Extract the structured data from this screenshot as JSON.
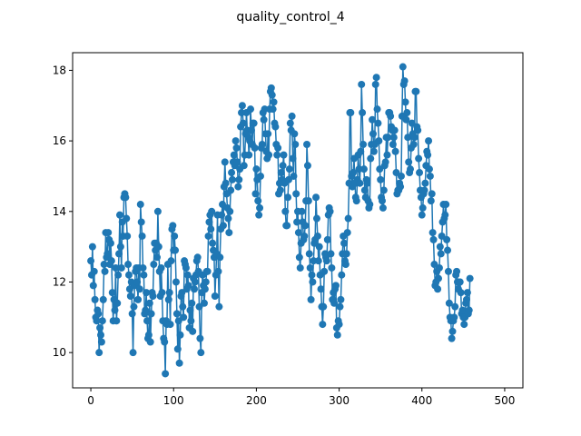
{
  "chart_data": {
    "type": "line",
    "title": "quality_control_4",
    "xlabel": "",
    "ylabel": "",
    "xlim": [
      -22,
      522
    ],
    "ylim": [
      9.0,
      18.5
    ],
    "x_ticks": [
      0,
      100,
      200,
      300,
      400,
      500
    ],
    "y_ticks": [
      10,
      12,
      14,
      16,
      18
    ],
    "grid": false,
    "legend": "none",
    "marker": "circle",
    "color": "#1f77b4",
    "series": [
      {
        "x_start": 0,
        "x_step": 1,
        "values": [
          12.6,
          12.2,
          13.0,
          11.9,
          12.3,
          11.5,
          11.0,
          10.9,
          11.2,
          11.1,
          10.0,
          10.7,
          10.5,
          10.3,
          10.9,
          11.5,
          12.5,
          12.3,
          13.4,
          12.7,
          12.8,
          13.4,
          13.2,
          12.5,
          13.1,
          12.6,
          11.7,
          10.9,
          11.5,
          11.2,
          12.4,
          10.9,
          11.4,
          12.2,
          12.8,
          13.9,
          13.0,
          12.4,
          13.7,
          13.3,
          14.4,
          14.5,
          14.4,
          13.8,
          13.3,
          12.5,
          12.2,
          11.8,
          11.6,
          12.0,
          11.1,
          10.0,
          11.3,
          11.9,
          12.3,
          12.4,
          12.0,
          11.5,
          12.4,
          11.8,
          14.2,
          13.7,
          13.3,
          12.4,
          12.2,
          11.1,
          11.2,
          11.7,
          10.9,
          10.4,
          10.5,
          11.4,
          10.3,
          11.1,
          11.7,
          11.6,
          12.5,
          13.1,
          12.9,
          13.1,
          12.7,
          14.0,
          13.0,
          12.3,
          11.6,
          12.4,
          11.7,
          10.9,
          10.4,
          10.3,
          9.4,
          10.9,
          10.8,
          12.5,
          11.5,
          11.7,
          10.8,
          12.6,
          13.5,
          13.6,
          12.9,
          13.3,
          12.9,
          12.0,
          11.1,
          10.1,
          10.9,
          9.7,
          10.5,
          11.6,
          11.7,
          11.3,
          11.0,
          12.6,
          12.5,
          12.4,
          11.8,
          12.2,
          11.9,
          10.7,
          11.2,
          10.9,
          11.4,
          10.6,
          12.1,
          11.8,
          12.0,
          12.2,
          12.6,
          12.7,
          12.3,
          11.3,
          10.4,
          10.0,
          11.7,
          12.2,
          11.9,
          11.4,
          11.8,
          12.0,
          12.3,
          12.3,
          13.3,
          13.7,
          13.9,
          13.5,
          14.0,
          13.1,
          12.9,
          12.7,
          11.6,
          12.2,
          12.8,
          13.9,
          12.3,
          11.3,
          12.7,
          13.5,
          13.9,
          14.2,
          13.6,
          14.7,
          15.4,
          14.8,
          14.5,
          14.1,
          13.8,
          13.4,
          14.0,
          14.6,
          15.1,
          14.9,
          15.4,
          15.6,
          15.3,
          16.0,
          15.8,
          15.4,
          14.7,
          14.9,
          15.2,
          16.4,
          16.8,
          17.0,
          16.5,
          15.3,
          15.6,
          16.2,
          16.8,
          16.3,
          16.1,
          15.6,
          16.0,
          16.9,
          16.3,
          15.9,
          16.5,
          16.5,
          15.8,
          14.5,
          15.2,
          14.9,
          14.3,
          13.9,
          14.1,
          15.0,
          15.8,
          15.9,
          16.8,
          16.6,
          16.9,
          16.2,
          15.7,
          15.5,
          16.2,
          15.6,
          16.9,
          17.4,
          17.5,
          17.3,
          16.9,
          17.1,
          16.5,
          16.4,
          15.9,
          15.6,
          15.8,
          14.5,
          14.8,
          14.6,
          15.1,
          14.9,
          15.3,
          15.6,
          14.8,
          14.0,
          13.6,
          13.6,
          14.4,
          14.9,
          15.2,
          16.5,
          16.3,
          16.7,
          15.5,
          15.0,
          16.2,
          15.9,
          14.5,
          13.7,
          14.0,
          13.4,
          12.7,
          12.4,
          13.1,
          14.0,
          13.7,
          13.2,
          13.3,
          13.6,
          14.3,
          15.9,
          15.3,
          14.3,
          12.8,
          12.4,
          11.5,
          12.2,
          12.0,
          12.6,
          13.1,
          13.2,
          14.4,
          13.8,
          13.3,
          12.6,
          13.0,
          12.2,
          11.8,
          11.3,
          10.8,
          11.3,
          12.3,
          12.8,
          12.7,
          12.6,
          13.2,
          13.9,
          14.1,
          14.0,
          12.8,
          12.4,
          11.5,
          11.7,
          11.4,
          11.8,
          11.9,
          10.7,
          10.5,
          10.9,
          10.8,
          11.3,
          11.5,
          12.2,
          12.8,
          13.3,
          13.1,
          12.6,
          12.5,
          12.8,
          13.4,
          13.8,
          14.8,
          16.8,
          16.8,
          15.0,
          14.7,
          15.1,
          15.5,
          14.8,
          14.4,
          14.3,
          14.9,
          15.6,
          15.2,
          14.8,
          15.7,
          17.6,
          16.8,
          15.9,
          15.2,
          14.6,
          14.4,
          14.9,
          14.8,
          14.3,
          14.1,
          14.2,
          15.5,
          15.9,
          16.6,
          16.2,
          15.7,
          15.9,
          17.6,
          17.8,
          16.9,
          16.5,
          16.0,
          15.2,
          14.9,
          14.4,
          14.3,
          14.1,
          14.6,
          15.3,
          15.4,
          16.1,
          15.6,
          16.1,
          16.8,
          16.8,
          16.7,
          16.4,
          16.3,
          15.9,
          16.1,
          16.3,
          15.7,
          15.1,
          14.5,
          14.6,
          14.6,
          14.8,
          14.7,
          15.0,
          16.7,
          18.1,
          17.6,
          17.7,
          17.1,
          16.6,
          16.8,
          16.1,
          15.4,
          15.1,
          15.2,
          15.8,
          16.5,
          16.2,
          15.9,
          16.1,
          17.4,
          17.4,
          16.4,
          16.3,
          15.5,
          15.1,
          14.6,
          14.4,
          13.9,
          14.1,
          14.5,
          14.6,
          14.8,
          15.3,
          15.7,
          15.6,
          16.0,
          15.2,
          15.0,
          14.3,
          14.5,
          13.4,
          13.2,
          12.5,
          11.9,
          12.0,
          12.3,
          11.8,
          12.1,
          12.4,
          13.0,
          12.8,
          13.3,
          13.7,
          14.2,
          13.8,
          13.9,
          14.2,
          13.2,
          12.9,
          12.3,
          11.4,
          11.0,
          10.9,
          10.4,
          10.6,
          10.9,
          11.0,
          11.3,
          12.2,
          12.3,
          12.0,
          11.8,
          12.0,
          12.0,
          11.7,
          11.1,
          11.2,
          11.0,
          10.8,
          11.0,
          11.4,
          11.5,
          11.7,
          11.1,
          11.2,
          12.1
        ]
      }
    ]
  }
}
